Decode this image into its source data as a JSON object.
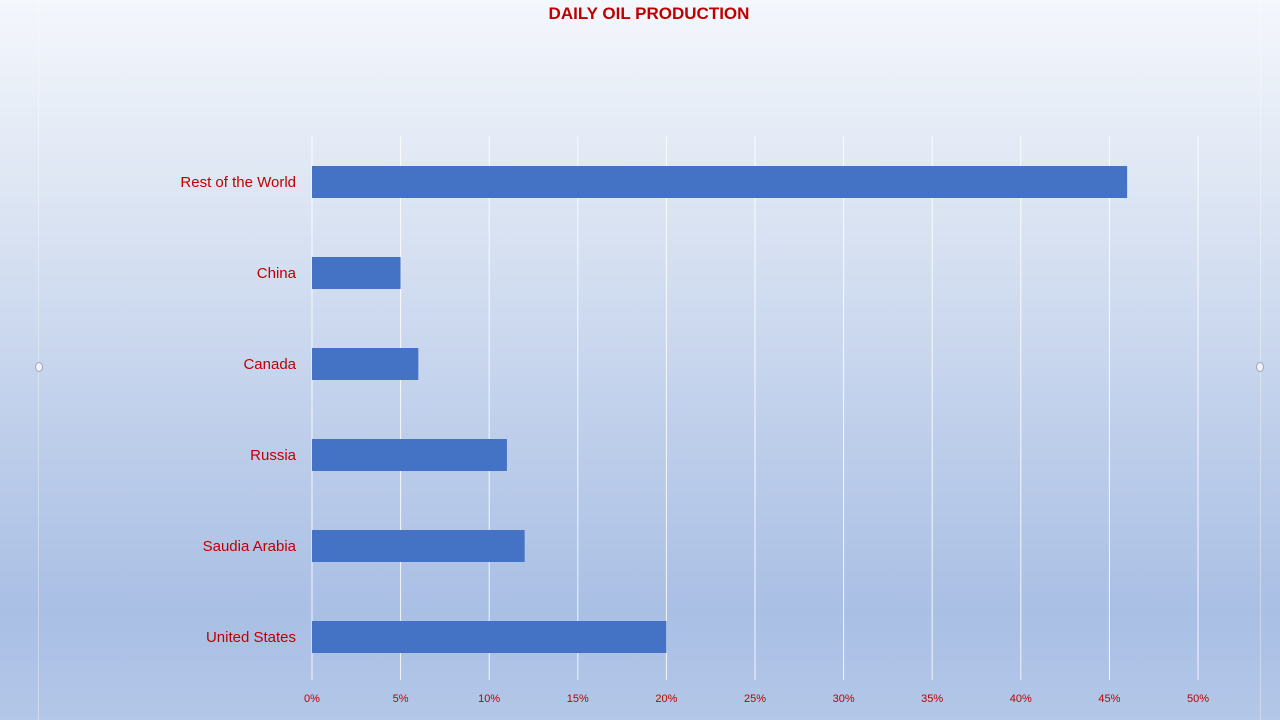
{
  "chart_data": {
    "type": "bar",
    "orientation": "horizontal",
    "title": "DAILY OIL PRODUCTION",
    "categories": [
      "United States",
      "Saudia Arabia",
      "Russia",
      "Canada",
      "China",
      "Rest of the World"
    ],
    "values": [
      20,
      12,
      11,
      6,
      5,
      46
    ],
    "unit": "%",
    "xlim": [
      0,
      50
    ],
    "x_ticks": [
      "0%",
      "5%",
      "10%",
      "15%",
      "20%",
      "25%",
      "30%",
      "35%",
      "40%",
      "45%",
      "50%"
    ],
    "grid": true,
    "legend": "none",
    "colors": {
      "bar": "#4472C4",
      "text": "#C00000",
      "grid": "#ffffff"
    }
  }
}
